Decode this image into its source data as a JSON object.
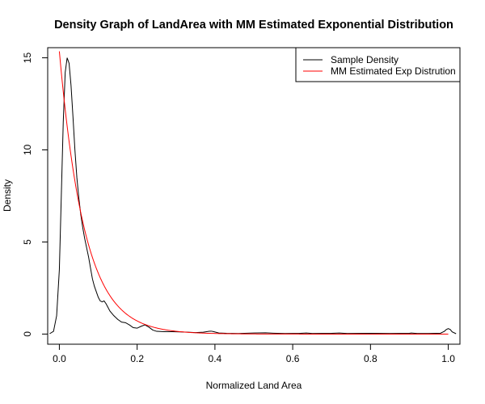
{
  "chart_data": {
    "type": "line",
    "title": "Density Graph of LandArea with MM Estimated Exponential Distribution",
    "xlabel": "Normalized Land Area",
    "ylabel": "Density",
    "xlim": [
      -0.03,
      1.03
    ],
    "ylim": [
      -0.55,
      15.55
    ],
    "xticks": [
      0.0,
      0.2,
      0.4,
      0.6,
      0.8,
      1.0
    ],
    "xtick_labels": [
      "0.0",
      "0.2",
      "0.4",
      "0.6",
      "0.8",
      "1.0"
    ],
    "yticks": [
      0,
      5,
      10,
      15
    ],
    "ytick_labels": [
      "0",
      "5",
      "10",
      "15"
    ],
    "grid": false,
    "legend_position": "top-right",
    "series": [
      {
        "name": "Sample Density",
        "color": "#000000",
        "x": [
          -0.025,
          -0.015,
          -0.007,
          0.0,
          0.005,
          0.01,
          0.015,
          0.02,
          0.025,
          0.03,
          0.035,
          0.04,
          0.045,
          0.05,
          0.055,
          0.06,
          0.065,
          0.07,
          0.075,
          0.08,
          0.085,
          0.09,
          0.095,
          0.1,
          0.105,
          0.11,
          0.115,
          0.12,
          0.125,
          0.13,
          0.14,
          0.15,
          0.16,
          0.17,
          0.18,
          0.19,
          0.2,
          0.21,
          0.22,
          0.23,
          0.24,
          0.25,
          0.27,
          0.29,
          0.31,
          0.33,
          0.35,
          0.37,
          0.385,
          0.39,
          0.395,
          0.41,
          0.43,
          0.46,
          0.5,
          0.53,
          0.55,
          0.58,
          0.62,
          0.635,
          0.65,
          0.7,
          0.72,
          0.74,
          0.8,
          0.85,
          0.9,
          0.905,
          0.92,
          0.95,
          0.98,
          0.99,
          0.995,
          1.0,
          1.005,
          1.01,
          1.02
        ],
        "y": [
          0.02,
          0.15,
          1.0,
          3.5,
          7.5,
          11.5,
          14.2,
          15.0,
          14.7,
          13.5,
          11.8,
          10.0,
          8.5,
          7.4,
          6.5,
          5.8,
          5.2,
          4.7,
          4.2,
          3.6,
          3.0,
          2.6,
          2.3,
          2.0,
          1.8,
          1.75,
          1.8,
          1.65,
          1.45,
          1.25,
          1.0,
          0.8,
          0.65,
          0.62,
          0.5,
          0.35,
          0.32,
          0.42,
          0.5,
          0.38,
          0.22,
          0.15,
          0.13,
          0.13,
          0.12,
          0.1,
          0.08,
          0.1,
          0.15,
          0.16,
          0.14,
          0.06,
          0.04,
          0.03,
          0.06,
          0.07,
          0.05,
          0.03,
          0.04,
          0.06,
          0.03,
          0.04,
          0.06,
          0.03,
          0.04,
          0.03,
          0.04,
          0.06,
          0.03,
          0.03,
          0.05,
          0.15,
          0.25,
          0.3,
          0.25,
          0.12,
          0.02
        ]
      },
      {
        "name": "MM Estimated Exp Distrution",
        "color": "#ff0000",
        "rate": 15.35,
        "x_from": 0.0,
        "x_to": 1.0
      }
    ]
  }
}
